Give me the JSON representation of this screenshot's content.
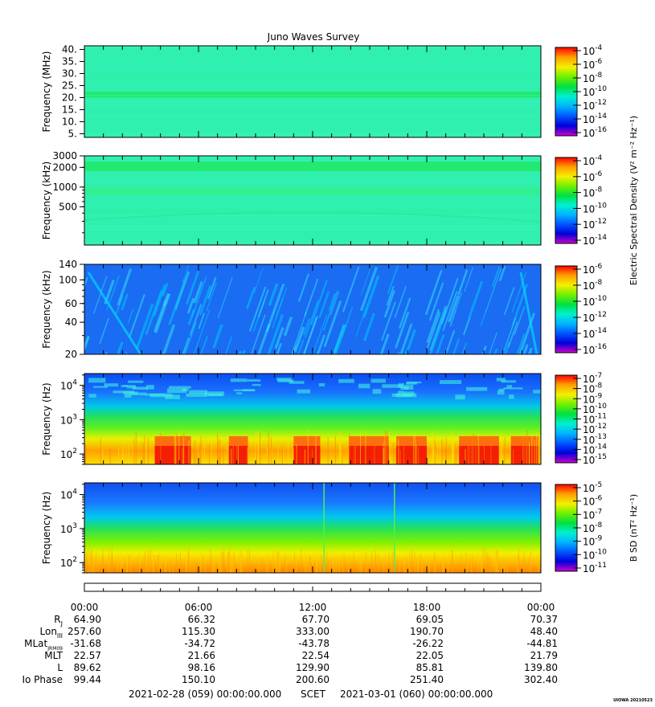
{
  "title": "Juno Waves Survey",
  "footer_brand": "UIOWA 20210523",
  "chart_data": [
    {
      "type": "heatmap",
      "ylabel": "Frequency (MHz)",
      "yscale": "linear",
      "ylim": [
        3.5,
        41.5
      ],
      "yticks": [
        {
          "v": 40,
          "label": "40."
        },
        {
          "v": 35,
          "label": "35."
        },
        {
          "v": 30,
          "label": "30."
        },
        {
          "v": 25,
          "label": "25."
        },
        {
          "v": 20,
          "label": "20."
        },
        {
          "v": 15,
          "label": "15."
        },
        {
          "v": 10,
          "label": "10."
        },
        {
          "v": 5,
          "label": "5."
        }
      ],
      "features": [
        {
          "kind": "band",
          "from": 20,
          "to": 22.5,
          "color": "#22e86a"
        },
        {
          "kind": "band",
          "from": 28,
          "to": 28.6,
          "color": "#2ff0a0"
        }
      ],
      "colorbar": {
        "label": "",
        "ticks": [
          {
            "base": "10",
            "exp": "-4"
          },
          {
            "base": "10",
            "exp": "-6"
          },
          {
            "base": "10",
            "exp": "-8"
          },
          {
            "base": "10",
            "exp": "-10"
          },
          {
            "base": "10",
            "exp": "-12"
          },
          {
            "base": "10",
            "exp": "-14"
          },
          {
            "base": "10",
            "exp": "-16"
          }
        ]
      }
    },
    {
      "type": "heatmap",
      "ylabel": "Frequency (kHz)",
      "yscale": "log",
      "ylim": [
        130,
        3000
      ],
      "yticks": [
        {
          "v": 3000,
          "label": "3000"
        },
        {
          "v": 2000,
          "label": "2000"
        },
        {
          "v": 1000,
          "label": "1000"
        },
        {
          "v": 500,
          "label": "500"
        }
      ],
      "features": [
        {
          "kind": "band",
          "from": 1750,
          "to": 2450,
          "color": "#22e86a"
        },
        {
          "kind": "band",
          "from": 750,
          "to": 1000,
          "color": "#33ee90"
        },
        {
          "kind": "band",
          "from": 380,
          "to": 460,
          "color": "#30f0a8"
        }
      ],
      "colorbar": {
        "label": "Electric Spectral Density (V² m⁻² Hz⁻¹)",
        "ticks": [
          {
            "base": "10",
            "exp": "-4"
          },
          {
            "base": "10",
            "exp": "-6"
          },
          {
            "base": "10",
            "exp": "-8"
          },
          {
            "base": "10",
            "exp": "-10"
          },
          {
            "base": "10",
            "exp": "-12"
          },
          {
            "base": "10",
            "exp": "-14"
          }
        ]
      }
    },
    {
      "type": "heatmap",
      "ylabel": "Frequency (kHz)",
      "yscale": "log",
      "ylim": [
        20,
        140
      ],
      "yticks": [
        {
          "v": 140,
          "label": "140"
        },
        {
          "v": 100,
          "label": "100"
        },
        {
          "v": 60,
          "label": "60"
        },
        {
          "v": 40,
          "label": "40"
        },
        {
          "v": 20,
          "label": "20"
        }
      ],
      "features": [],
      "colorbar": {
        "label": "",
        "ticks": [
          {
            "base": "10",
            "exp": "-6"
          },
          {
            "base": "10",
            "exp": "-8"
          },
          {
            "base": "10",
            "exp": "-10"
          },
          {
            "base": "10",
            "exp": "-12"
          },
          {
            "base": "10",
            "exp": "-14"
          },
          {
            "base": "10",
            "exp": "-16"
          }
        ]
      }
    },
    {
      "type": "heatmap",
      "ylabel": "Frequency (Hz)",
      "yscale": "log",
      "ylim": [
        50,
        22000
      ],
      "yticks": [
        {
          "v": 10000,
          "base": "10",
          "exp": "4"
        },
        {
          "v": 1000,
          "base": "10",
          "exp": "3"
        },
        {
          "v": 100,
          "base": "10",
          "exp": "2"
        }
      ],
      "features": [],
      "colorbar": {
        "label": "",
        "ticks": [
          {
            "base": "10",
            "exp": "-7"
          },
          {
            "base": "10",
            "exp": "-8"
          },
          {
            "base": "10",
            "exp": "-9"
          },
          {
            "base": "10",
            "exp": "-10"
          },
          {
            "base": "10",
            "exp": "-11"
          },
          {
            "base": "10",
            "exp": "-12"
          },
          {
            "base": "10",
            "exp": "-13"
          },
          {
            "base": "10",
            "exp": "-14"
          },
          {
            "base": "10",
            "exp": "-15"
          }
        ]
      }
    },
    {
      "type": "heatmap",
      "ylabel": "Frequency (Hz)",
      "yscale": "log",
      "ylim": [
        50,
        22000
      ],
      "yticks": [
        {
          "v": 10000,
          "base": "10",
          "exp": "4"
        },
        {
          "v": 1000,
          "base": "10",
          "exp": "3"
        },
        {
          "v": 100,
          "base": "10",
          "exp": "2"
        }
      ],
      "features": [],
      "colorbar": {
        "label": "B SD (nT² Hz⁻¹)",
        "ticks": [
          {
            "base": "10",
            "exp": "-5"
          },
          {
            "base": "10",
            "exp": "-6"
          },
          {
            "base": "10",
            "exp": "-7"
          },
          {
            "base": "10",
            "exp": "-8"
          },
          {
            "base": "10",
            "exp": "-9"
          },
          {
            "base": "10",
            "exp": "-10"
          },
          {
            "base": "10",
            "exp": "-11"
          }
        ]
      }
    }
  ],
  "colorscale": [
    "#d000d0",
    "#0000d8",
    "#0055ff",
    "#00b4ff",
    "#00f0d0",
    "#00e040",
    "#70f000",
    "#f4f000",
    "#ffa000",
    "#ff0000"
  ],
  "time_axis": {
    "labels": [
      "00:00",
      "06:00",
      "12:00",
      "18:00",
      "00:00"
    ],
    "hours_span": 24
  },
  "ephemeris": {
    "rows": [
      {
        "label": "R",
        "sub": "J",
        "values": [
          "64.90",
          "66.32",
          "67.70",
          "69.05",
          "70.37"
        ]
      },
      {
        "label": "Lon",
        "sub": "III",
        "values": [
          "257.60",
          "115.30",
          "333.00",
          "190.70",
          "48.40"
        ]
      },
      {
        "label": "MLat",
        "sub": "JRM09",
        "values": [
          "-31.68",
          "-34.72",
          "-43.78",
          "-26.22",
          "-44.81"
        ]
      },
      {
        "label": "MLT",
        "sub": "",
        "values": [
          "22.57",
          "21.66",
          "22.54",
          "22.05",
          "21.79"
        ]
      },
      {
        "label": "L",
        "sub": "",
        "values": [
          "89.62",
          "98.16",
          "129.90",
          "85.81",
          "139.80"
        ]
      },
      {
        "label": "Io Phase",
        "sub": "",
        "values": [
          "99.44",
          "150.10",
          "200.60",
          "251.40",
          "302.40"
        ]
      }
    ]
  },
  "footer": {
    "start": "2021-02-28 (059) 00:00:00.000",
    "scet": "SCET",
    "end": "2021-03-01 (060) 00:00:00.000"
  }
}
